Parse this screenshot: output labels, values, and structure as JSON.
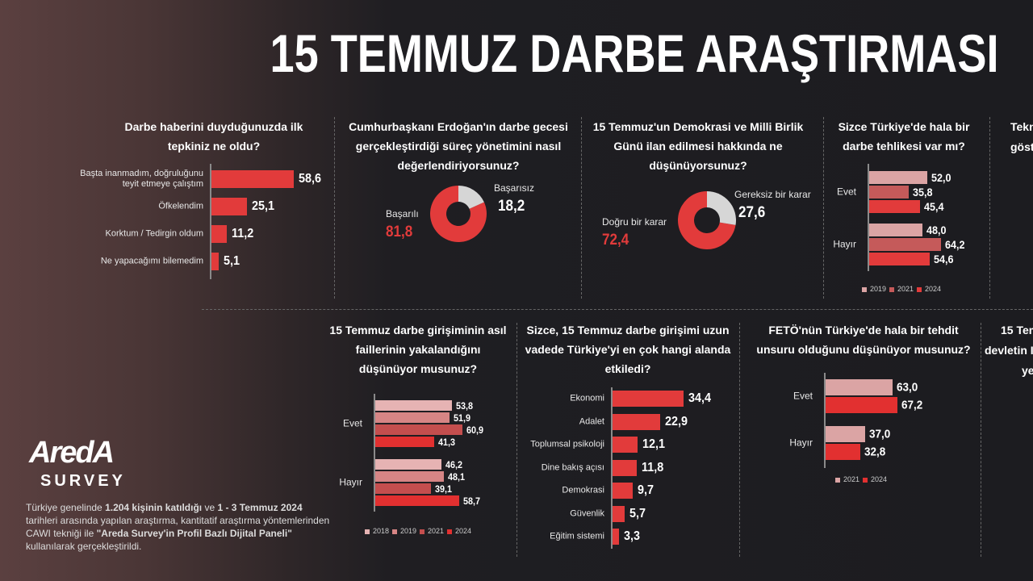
{
  "title": "15 TEMMUZ DARBE ARAŞTIRMASI",
  "logo": {
    "brand": "AredA",
    "sub": "SURVEY"
  },
  "footnote": [
    "Türkiye genelinde ",
    "1.204 kişinin katıldığı",
    " ve ",
    "1 - 3 Temmuz 2024",
    " tarihleri arasında yapılan araştırma, kantitatif araştırma yöntemlerinden CAWI tekniği ile ",
    "\"Areda Survey'in Profil Bazlı Dijital Paneli\"",
    " kullanılarak gerçekleştirildi."
  ],
  "clipped_titles": [
    [
      "Tekn",
      "göste"
    ],
    [
      "15 Tem",
      "devletin I",
      "ye"
    ]
  ],
  "chart_data": [
    {
      "type": "bar",
      "title": "Darbe haberini duyduğunuzda ilk tepkiniz ne oldu?",
      "categories": [
        "Başta inanmadım, doğruluğunu teyit etmeye çalıştım",
        "Öfkelendim",
        "Korktum / Tedirgin oldum",
        "Ne yapacağımı bilemedim"
      ],
      "values": [
        58.6,
        25.1,
        11.2,
        5.1
      ],
      "value_labels": [
        "58,6",
        "25,1",
        "11,2",
        "5,1"
      ],
      "color": "#e23b3b"
    },
    {
      "type": "pie",
      "donut": true,
      "title": "Cumhurbaşkanı Erdoğan'ın darbe gecesi gerçekleştirdiği süreç yönetimini nasıl değerlendiriyorsunuz?",
      "categories": [
        "Başarılı",
        "Başarısız"
      ],
      "values": [
        81.8,
        18.2
      ],
      "value_labels": [
        "81,8",
        "18,2"
      ],
      "colors": [
        "#e23b3b",
        "#d6d6d6"
      ]
    },
    {
      "type": "pie",
      "donut": true,
      "title": "15 Temmuz'un Demokrasi ve Milli Birlik Günü ilan edilmesi hakkında ne düşünüyorsunuz?",
      "categories": [
        "Doğru bir karar",
        "Gereksiz bir karar"
      ],
      "values": [
        72.4,
        27.6
      ],
      "value_labels": [
        "72,4",
        "27,6"
      ],
      "colors": [
        "#e23b3b",
        "#d6d6d6"
      ]
    },
    {
      "type": "grouped_bar",
      "title": "Sizce Türkiye'de hala bir darbe tehlikesi var mı?",
      "categories": [
        "Evet",
        "Hayır"
      ],
      "series": [
        {
          "name": "2019",
          "color": "#dba4a4",
          "values": [
            52.0,
            48.0
          ],
          "value_labels": [
            "52,0",
            "48,0"
          ]
        },
        {
          "name": "2021",
          "color": "#c55a5a",
          "values": [
            35.8,
            64.2
          ],
          "value_labels": [
            "35,8",
            "64,2"
          ]
        },
        {
          "name": "2024",
          "color": "#e23b3b",
          "values": [
            45.4,
            54.6
          ],
          "value_labels": [
            "45,4",
            "54,6"
          ]
        }
      ]
    },
    {
      "type": "grouped_bar",
      "title": "15 Temmuz darbe girişiminin asıl faillerinin yakalandığını düşünüyor musunuz?",
      "categories": [
        "Evet",
        "Hayır"
      ],
      "series": [
        {
          "name": "2018",
          "color": "#e6b3b3",
          "values": [
            53.8,
            46.2
          ],
          "value_labels": [
            "53,8",
            "46,2"
          ]
        },
        {
          "name": "2019",
          "color": "#d68585",
          "values": [
            51.9,
            48.1
          ],
          "value_labels": [
            "51,9",
            "48,1"
          ]
        },
        {
          "name": "2021",
          "color": "#c44e4e",
          "values": [
            60.9,
            39.1
          ],
          "value_labels": [
            "60,9",
            "39,1"
          ]
        },
        {
          "name": "2024",
          "color": "#e23030",
          "values": [
            41.3,
            58.7
          ],
          "value_labels": [
            "41,3",
            "58,7"
          ]
        }
      ]
    },
    {
      "type": "bar",
      "title": "Sizce, 15 Temmuz darbe girişimi uzun vadede Türkiye'yi en çok hangi alanda etkiledi?",
      "categories": [
        "Ekonomi",
        "Adalet",
        "Toplumsal psikoloji",
        "Dine bakış açısı",
        "Demokrasi",
        "Güvenlik",
        "Eğitim sistemi"
      ],
      "values": [
        34.4,
        22.9,
        12.1,
        11.8,
        9.7,
        5.7,
        3.3
      ],
      "value_labels": [
        "34,4",
        "22,9",
        "12,1",
        "11,8",
        "9,7",
        "5,7",
        "3,3"
      ],
      "color": "#e23b3b"
    },
    {
      "type": "grouped_bar",
      "title": "FETÖ'nün Türkiye'de hala bir tehdit unsuru olduğunu düşünüyor musunuz?",
      "categories": [
        "Evet",
        "Hayır"
      ],
      "series": [
        {
          "name": "2021",
          "color": "#dba4a4",
          "values": [
            63.0,
            37.0
          ],
          "value_labels": [
            "63,0",
            "37,0"
          ]
        },
        {
          "name": "2024",
          "color": "#e23030",
          "values": [
            67.2,
            32.8
          ],
          "value_labels": [
            "67,2",
            "32,8"
          ]
        }
      ]
    }
  ]
}
